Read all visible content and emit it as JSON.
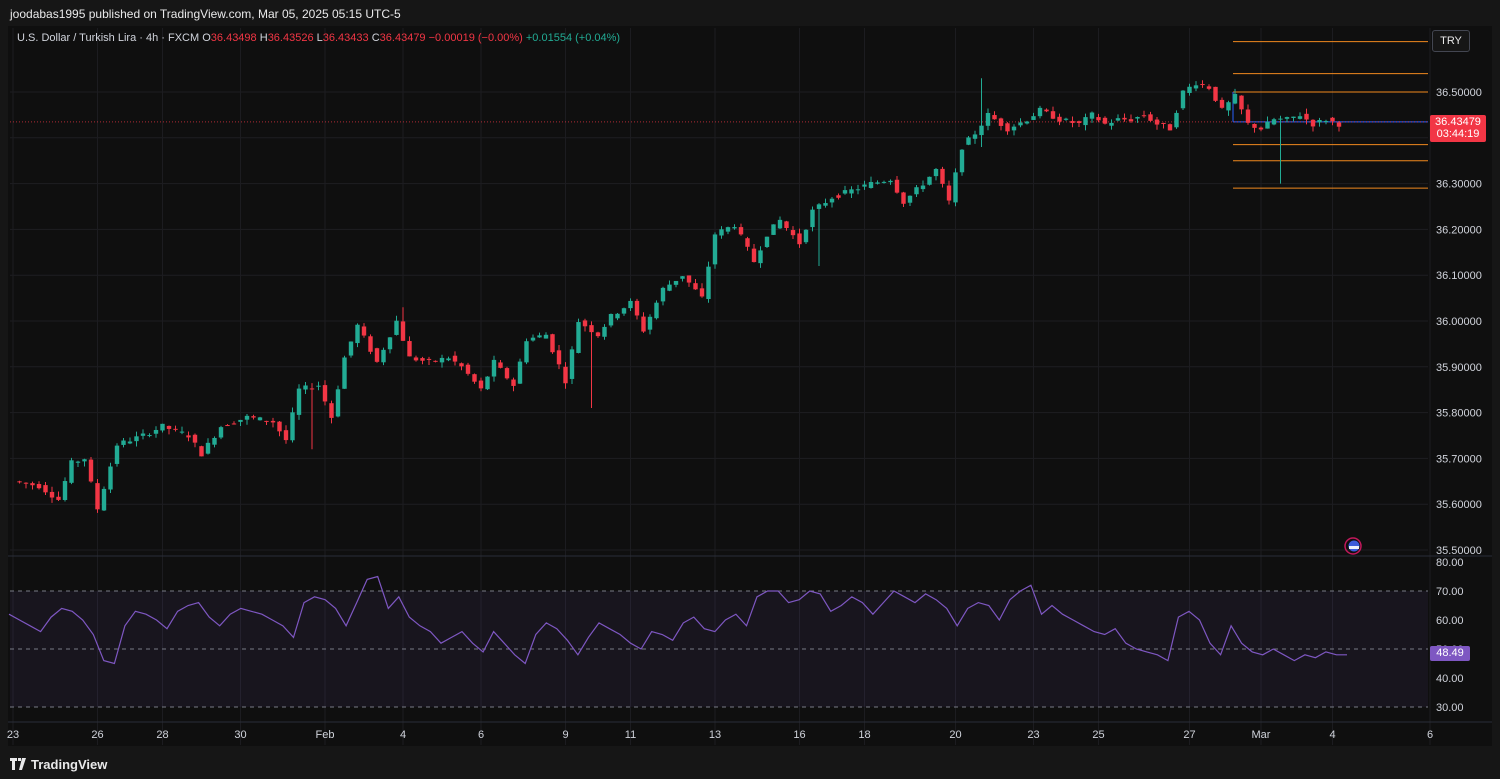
{
  "header": {
    "publisher": "joodabas1995 published on TradingView.com, Mar 05, 2025 05:15 UTC-5"
  },
  "legend": {
    "symbol": "U.S. Dollar / Turkish Lira · 4h · FXCM",
    "o_label": "O",
    "o": "36.43498",
    "h_label": "H",
    "h": "36.43526",
    "l_label": "L",
    "l": "36.43433",
    "c_label": "C",
    "c": "36.43479",
    "change": "−0.00019 (−0.00%)",
    "secondary": "+0.01554 (+0.04%)"
  },
  "currency_button": "TRY",
  "last_price": {
    "value": "36.43479",
    "countdown": "03:44:19"
  },
  "rsi_value": "48.49",
  "footer": {
    "brand": "TradingView"
  },
  "colors": {
    "up": "#22ab94",
    "down": "#f23645",
    "rsi": "#7e57c2",
    "levels": "#f0891e",
    "blue_line": "#2962ff"
  },
  "chart_data": {
    "type": "candlestick",
    "price_axis": {
      "min": 35.5,
      "max": 36.5,
      "ticks": [
        "36.50000",
        "36.40000",
        "36.30000",
        "36.20000",
        "36.10000",
        "36.00000",
        "35.90000",
        "35.80000",
        "35.70000",
        "35.60000",
        "35.50000"
      ]
    },
    "rsi_axis": {
      "ticks": [
        "80.00",
        "70.00",
        "60.00",
        "50.00",
        "40.00",
        "30.00"
      ],
      "levels": [
        70,
        50,
        30
      ]
    },
    "x_labels": [
      "23",
      "26",
      "28",
      "30",
      "Feb",
      "4",
      "6",
      "9",
      "11",
      "13",
      "16",
      "18",
      "20",
      "23",
      "25",
      "27",
      "Mar",
      "4",
      "6"
    ],
    "x_label_slots": [
      0,
      13,
      23,
      35,
      48,
      60,
      72,
      85,
      95,
      108,
      121,
      131,
      145,
      157,
      167,
      181,
      192,
      203,
      218
    ],
    "close_path": [
      [
        0,
        35.65
      ],
      [
        4,
        35.64
      ],
      [
        7,
        35.61
      ],
      [
        9,
        35.69
      ],
      [
        11,
        35.7
      ],
      [
        13,
        35.59
      ],
      [
        16,
        35.73
      ],
      [
        20,
        35.75
      ],
      [
        23,
        35.77
      ],
      [
        27,
        35.75
      ],
      [
        29,
        35.71
      ],
      [
        32,
        35.77
      ],
      [
        36,
        35.79
      ],
      [
        40,
        35.78
      ],
      [
        42,
        35.74
      ],
      [
        44,
        35.85
      ],
      [
        47,
        35.86
      ],
      [
        49,
        35.79
      ],
      [
        51,
        35.92
      ],
      [
        53,
        35.99
      ],
      [
        56,
        35.91
      ],
      [
        59,
        36.0
      ],
      [
        61,
        35.92
      ],
      [
        64,
        35.91
      ],
      [
        67,
        35.92
      ],
      [
        69,
        35.9
      ],
      [
        72,
        35.85
      ],
      [
        74,
        35.91
      ],
      [
        77,
        35.86
      ],
      [
        79,
        35.96
      ],
      [
        82,
        35.97
      ],
      [
        85,
        35.87
      ],
      [
        87,
        36.0
      ],
      [
        90,
        35.97
      ],
      [
        92,
        36.01
      ],
      [
        95,
        36.04
      ],
      [
        97,
        35.98
      ],
      [
        100,
        36.07
      ],
      [
        103,
        36.1
      ],
      [
        106,
        36.05
      ],
      [
        108,
        36.19
      ],
      [
        111,
        36.21
      ],
      [
        114,
        36.13
      ],
      [
        116,
        36.19
      ],
      [
        118,
        36.22
      ],
      [
        121,
        36.17
      ],
      [
        123,
        36.24
      ],
      [
        126,
        36.27
      ],
      [
        128,
        36.28
      ],
      [
        132,
        36.3
      ],
      [
        135,
        36.31
      ],
      [
        137,
        36.26
      ],
      [
        140,
        36.3
      ],
      [
        142,
        36.33
      ],
      [
        144,
        36.26
      ],
      [
        146,
        36.38
      ],
      [
        148,
        36.41
      ],
      [
        150,
        36.45
      ],
      [
        153,
        36.42
      ],
      [
        156,
        36.44
      ],
      [
        158,
        36.46
      ],
      [
        161,
        36.44
      ],
      [
        164,
        36.43
      ],
      [
        166,
        36.45
      ],
      [
        168,
        36.43
      ],
      [
        170,
        36.44
      ],
      [
        172,
        36.44
      ],
      [
        174,
        36.45
      ],
      [
        176,
        36.43
      ],
      [
        178,
        36.42
      ],
      [
        180,
        36.5
      ],
      [
        182,
        36.52
      ],
      [
        184,
        36.51
      ],
      [
        186,
        36.46
      ],
      [
        188,
        36.49
      ],
      [
        190,
        36.43
      ],
      [
        192,
        36.42
      ],
      [
        194,
        36.44
      ],
      [
        196,
        36.44
      ],
      [
        198,
        36.45
      ],
      [
        200,
        36.43
      ],
      [
        202,
        36.44
      ],
      [
        204,
        36.43
      ]
    ],
    "extreme_points": [
      {
        "slot": 149,
        "high": 36.53,
        "low": 36.38
      },
      {
        "slot": 89,
        "low": 35.81
      },
      {
        "slot": 60,
        "high": 36.03
      },
      {
        "slot": 46,
        "low": 35.72
      },
      {
        "slot": 124,
        "low": 36.12
      },
      {
        "slot": 195,
        "low": 36.3
      }
    ],
    "horizontal_levels": [
      36.61,
      36.54,
      36.5,
      36.385,
      36.35,
      36.29
    ],
    "rsi_series": [
      62,
      60,
      58,
      56,
      61,
      64,
      63,
      60,
      55,
      46,
      45,
      58,
      63,
      62,
      60,
      57,
      63,
      65,
      66,
      61,
      58,
      62,
      64,
      63,
      62,
      60,
      58,
      54,
      66,
      68,
      67,
      64,
      58,
      66,
      74,
      75,
      64,
      68,
      61,
      58,
      56,
      52,
      54,
      56,
      52,
      49,
      56,
      52,
      48,
      45,
      55,
      59,
      57,
      53,
      48,
      54,
      59,
      57,
      55,
      52,
      50,
      56,
      55,
      53,
      59,
      61,
      57,
      56,
      60,
      62,
      58,
      68,
      70,
      70,
      66,
      67,
      70,
      69,
      63,
      65,
      68,
      66,
      62,
      66,
      70,
      68,
      66,
      69,
      67,
      64,
      58,
      64,
      66,
      65,
      60,
      67,
      70,
      72,
      62,
      65,
      62,
      60,
      58,
      56,
      55,
      57,
      52,
      50,
      49,
      48,
      46,
      61,
      63,
      60,
      52,
      48,
      58,
      52,
      49,
      48,
      50,
      48,
      46,
      48,
      47,
      49,
      48,
      48
    ],
    "rsi_last": 48.49
  }
}
